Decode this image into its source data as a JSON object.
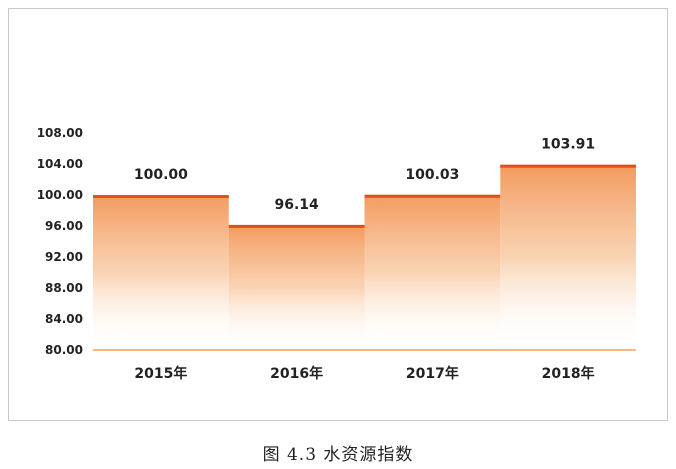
{
  "chart_data": {
    "type": "bar",
    "categories": [
      "2015年",
      "2016年",
      "2017年",
      "2018年"
    ],
    "values": [
      100.0,
      96.14,
      100.03,
      103.91
    ],
    "value_labels": [
      "100.00",
      "96.14",
      "100.03",
      "103.91"
    ],
    "ylim": [
      80,
      108
    ],
    "yticks": [
      "80.00",
      "84.00",
      "88.00",
      "92.00",
      "96.00",
      "100.00",
      "104.00",
      "108.00"
    ],
    "grid": false,
    "bar_color": "#f08040",
    "bar_top_color": "#e0501e",
    "axis_color": "#f0a060"
  },
  "caption": "图 4.3  水资源指数"
}
